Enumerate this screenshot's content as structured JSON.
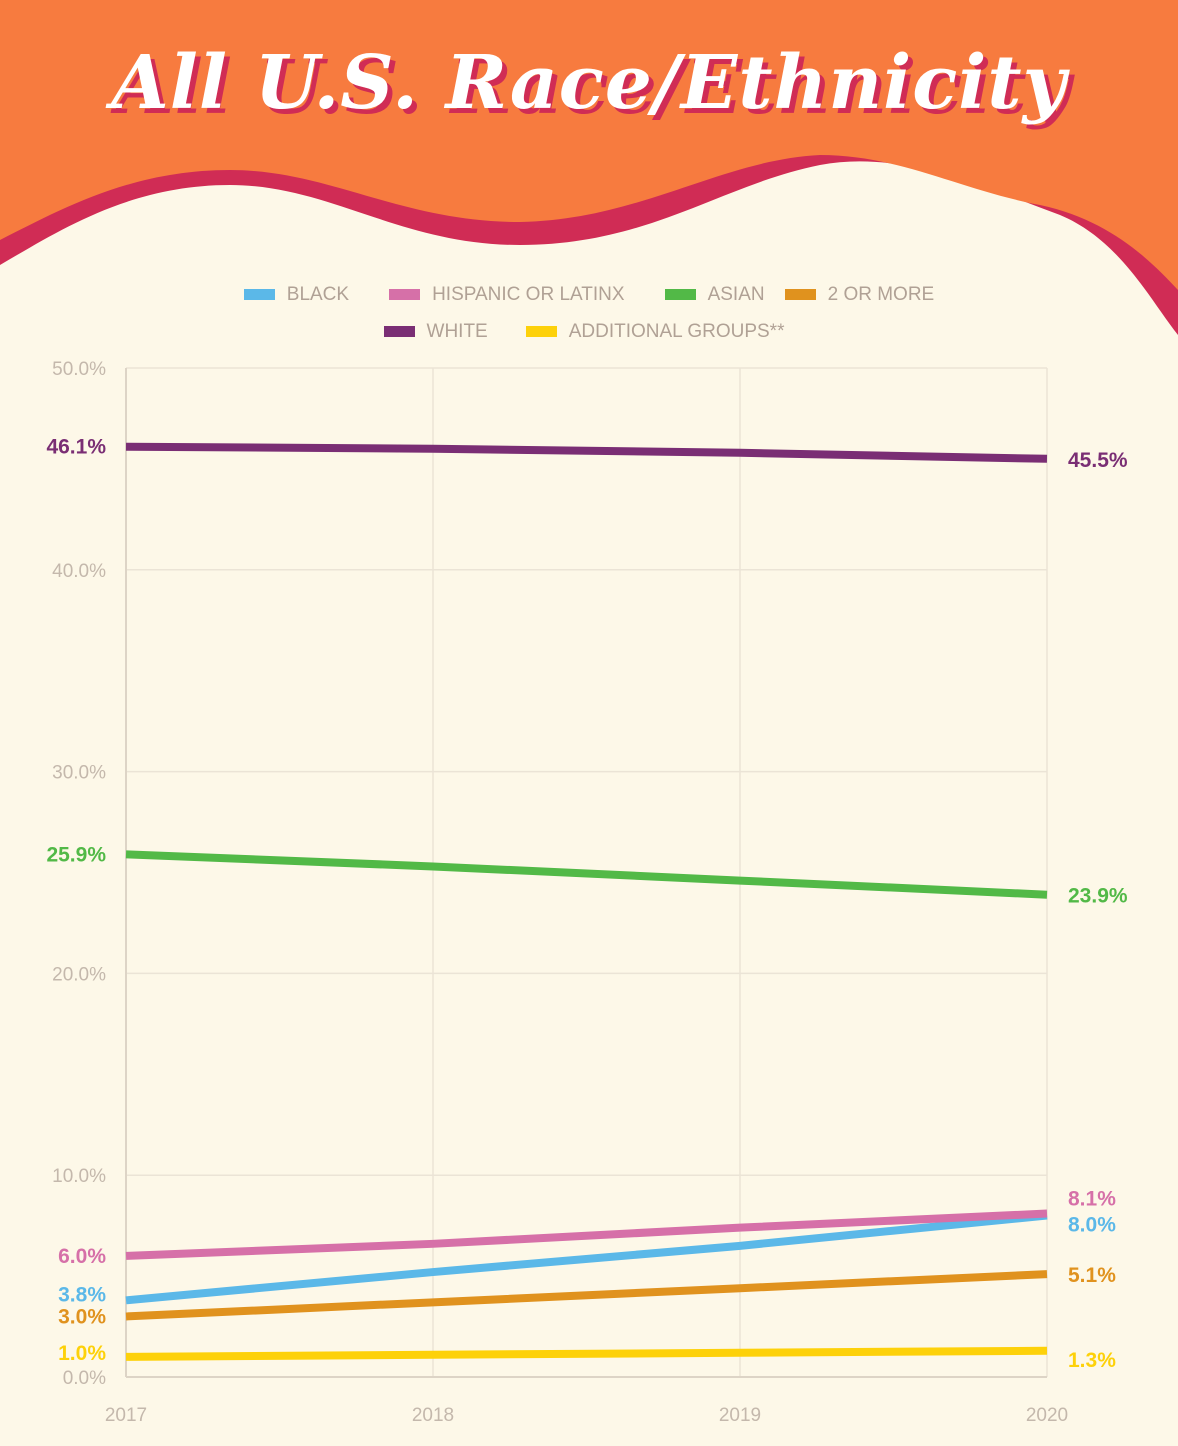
{
  "title": "All U.S. Race/Ethnicity",
  "colors": {
    "orange": "#f77b3f",
    "crimson": "#d02c55",
    "background": "#fdf8e8",
    "grid": "#ebe4d6",
    "tick": "#c4b8ac"
  },
  "chart_data": {
    "type": "line",
    "title": "All U.S. Race/Ethnicity",
    "x": [
      "2017",
      "2018",
      "2019",
      "2020"
    ],
    "yticks": [
      "0.0%",
      "10.0%",
      "20.0%",
      "30.0%",
      "40.0%",
      "50.0%"
    ],
    "ylim": [
      0,
      50
    ],
    "grid": true,
    "legend_position": "top",
    "series": [
      {
        "name": "BLACK",
        "color": "#5bb8e8",
        "values": [
          3.8,
          5.2,
          6.5,
          8.0
        ],
        "start_label": "3.8%",
        "end_label": "8.0%"
      },
      {
        "name": "HISPANIC OR LATINX",
        "color": "#d670a8",
        "values": [
          6.0,
          6.6,
          7.4,
          8.1
        ],
        "start_label": "6.0%",
        "end_label": "8.1%"
      },
      {
        "name": "ASIAN",
        "color": "#52b947",
        "values": [
          25.9,
          25.3,
          24.6,
          23.9
        ],
        "start_label": "25.9%",
        "end_label": "23.9%"
      },
      {
        "name": "2 OR MORE",
        "color": "#e0921e",
        "values": [
          3.0,
          3.7,
          4.4,
          5.1
        ],
        "start_label": "3.0%",
        "end_label": "5.1%"
      },
      {
        "name": "WHITE",
        "color": "#7a2e74",
        "values": [
          46.1,
          46.0,
          45.8,
          45.5
        ],
        "start_label": "46.1%",
        "end_label": "45.5%"
      },
      {
        "name": "ADDITIONAL GROUPS**",
        "color": "#fdd10a",
        "values": [
          1.0,
          1.1,
          1.2,
          1.3
        ],
        "start_label": "1.0%",
        "end_label": "1.3%"
      }
    ]
  }
}
